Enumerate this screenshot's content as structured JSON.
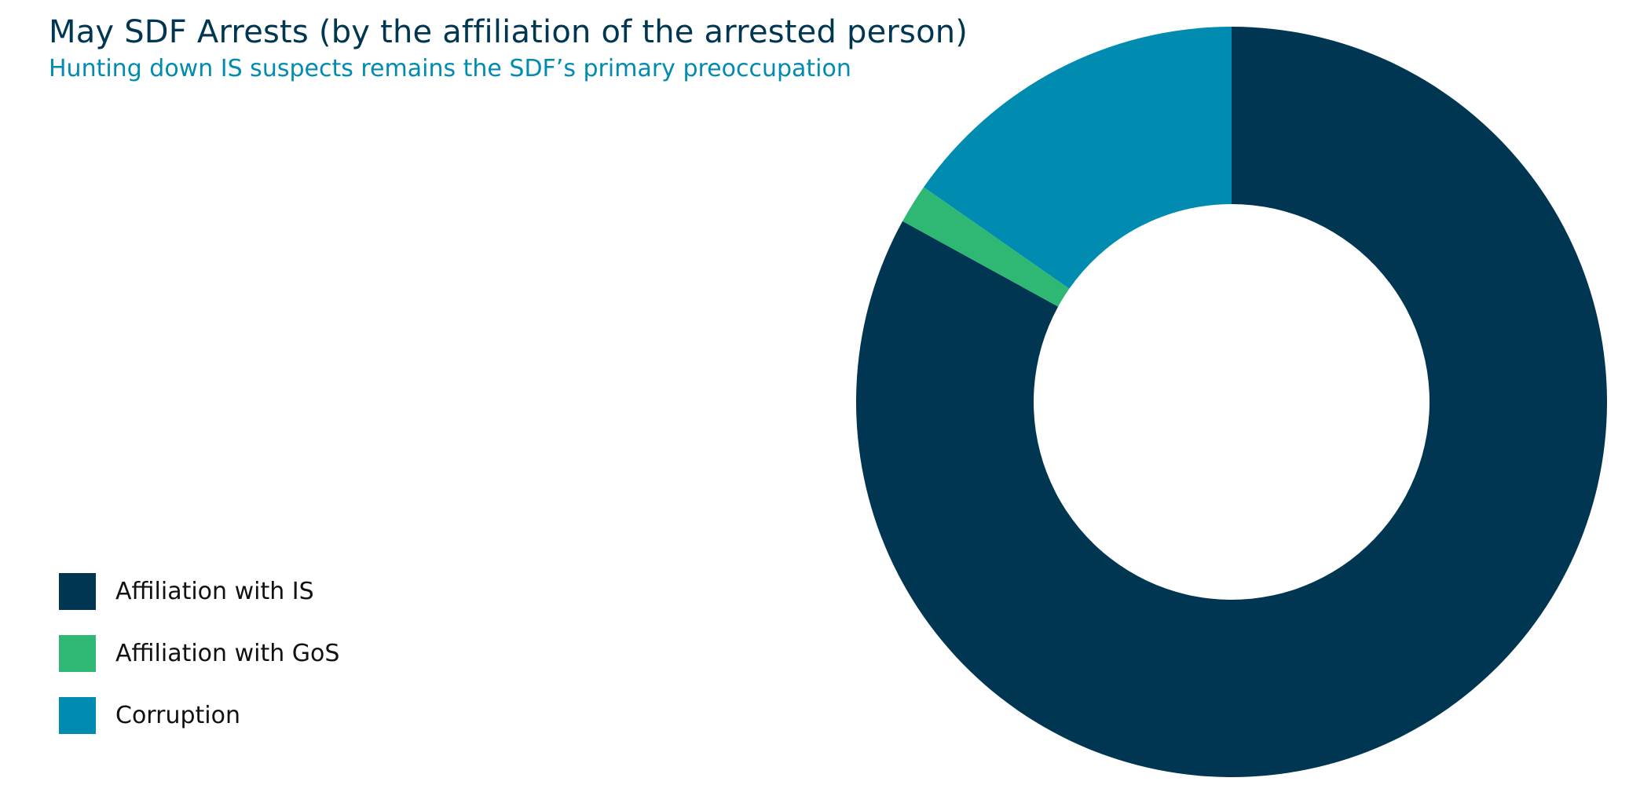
{
  "chart_data": {
    "type": "pie",
    "title": "May SDF Arrests (by the affiliation of the arrested person)",
    "subtitle": "Hunting down IS suspects remains the SDF’s primary preoccupation",
    "categories": [
      "Affiliation with IS",
      "Affiliation with GoS",
      "Corruption"
    ],
    "values": [
      83,
      1.7,
      15.3
    ],
    "colors": [
      "#003652",
      "#2fb874",
      "#008bb1"
    ],
    "start_angle_deg": 0,
    "direction": "clockwise",
    "donut": true,
    "legend_position": "bottom-left"
  }
}
